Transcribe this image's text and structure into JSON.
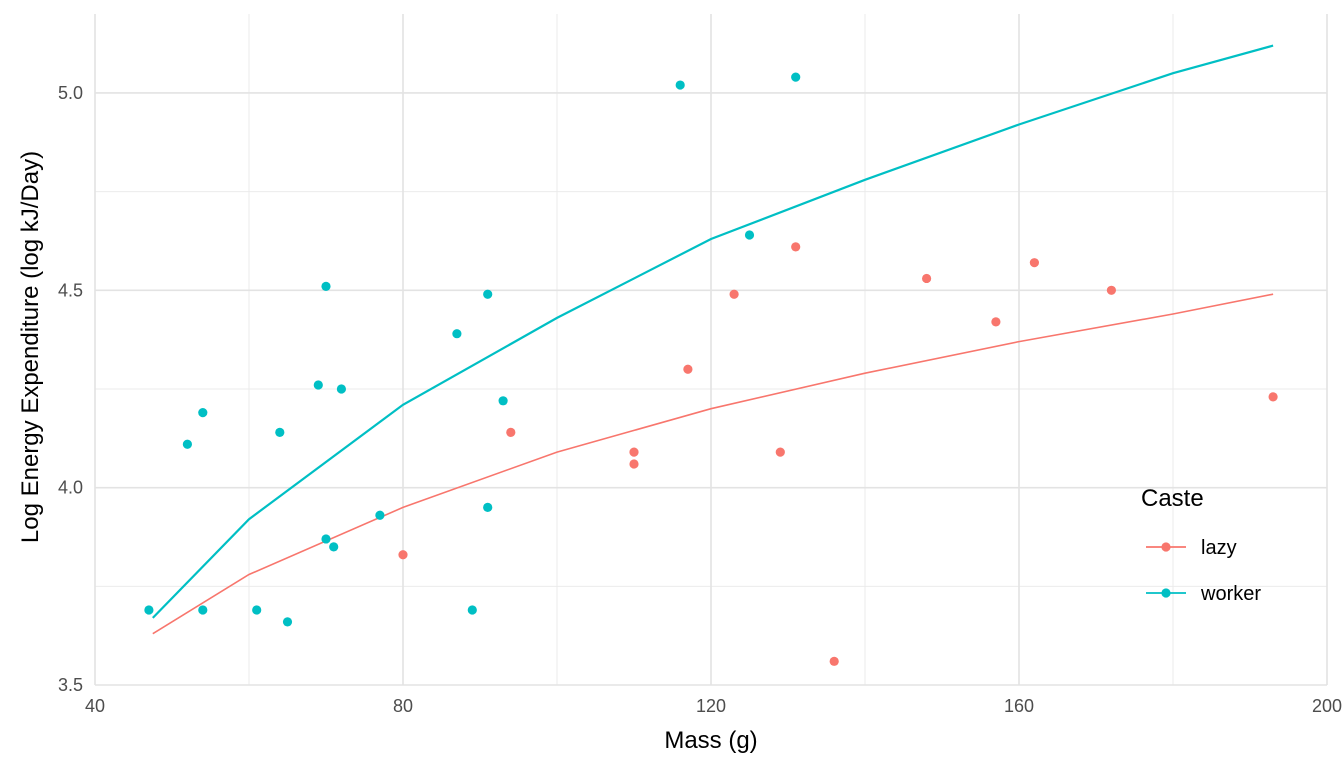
{
  "chart_data": {
    "type": "scatter",
    "title": "",
    "xlabel": "Mass (g)",
    "ylabel": "Log Energy Expenditure (log kJ/Day)",
    "xlim": [
      40,
      200
    ],
    "ylim": [
      3.5,
      5.2
    ],
    "x_ticks": [
      40,
      80,
      120,
      160,
      200
    ],
    "y_ticks": [
      3.5,
      4.0,
      4.5,
      5.0
    ],
    "x_tick_labels": [
      "40",
      "80",
      "120",
      "160",
      "200"
    ],
    "y_tick_labels": [
      "3.5",
      "4.0",
      "4.5",
      "5.0"
    ],
    "grid": true,
    "legend": {
      "title": "Caste",
      "placement": "bottom-right"
    },
    "series": [
      {
        "name": "lazy",
        "color": "#F8766D",
        "points": [
          {
            "x": 80,
            "y": 3.83
          },
          {
            "x": 94,
            "y": 4.14
          },
          {
            "x": 110,
            "y": 4.09
          },
          {
            "x": 110,
            "y": 4.06
          },
          {
            "x": 117,
            "y": 4.3
          },
          {
            "x": 123,
            "y": 4.49
          },
          {
            "x": 129,
            "y": 4.09
          },
          {
            "x": 131,
            "y": 4.61
          },
          {
            "x": 136,
            "y": 3.56
          },
          {
            "x": 148,
            "y": 4.53
          },
          {
            "x": 157,
            "y": 4.42
          },
          {
            "x": 162,
            "y": 4.57
          },
          {
            "x": 172,
            "y": 4.5
          },
          {
            "x": 193,
            "y": 4.23
          }
        ],
        "fit": [
          {
            "x": 47.5,
            "y": 3.63
          },
          {
            "x": 60,
            "y": 3.78
          },
          {
            "x": 80,
            "y": 3.95
          },
          {
            "x": 100,
            "y": 4.09
          },
          {
            "x": 120,
            "y": 4.2
          },
          {
            "x": 140,
            "y": 4.29
          },
          {
            "x": 160,
            "y": 4.37
          },
          {
            "x": 180,
            "y": 4.44
          },
          {
            "x": 193,
            "y": 4.49
          }
        ]
      },
      {
        "name": "worker",
        "color": "#00BFC4",
        "points": [
          {
            "x": 47,
            "y": 3.69
          },
          {
            "x": 52,
            "y": 4.11
          },
          {
            "x": 54,
            "y": 4.19
          },
          {
            "x": 54,
            "y": 3.69
          },
          {
            "x": 61,
            "y": 3.69
          },
          {
            "x": 64,
            "y": 4.14
          },
          {
            "x": 65,
            "y": 3.66
          },
          {
            "x": 69,
            "y": 4.26
          },
          {
            "x": 70,
            "y": 4.51
          },
          {
            "x": 70,
            "y": 3.87
          },
          {
            "x": 71,
            "y": 3.85
          },
          {
            "x": 72,
            "y": 4.25
          },
          {
            "x": 77,
            "y": 3.93
          },
          {
            "x": 87,
            "y": 4.39
          },
          {
            "x": 89,
            "y": 3.69
          },
          {
            "x": 91,
            "y": 4.49
          },
          {
            "x": 91,
            "y": 3.95
          },
          {
            "x": 93,
            "y": 4.22
          },
          {
            "x": 116,
            "y": 5.02
          },
          {
            "x": 125,
            "y": 4.64
          },
          {
            "x": 131,
            "y": 5.04
          }
        ],
        "fit": [
          {
            "x": 47.5,
            "y": 3.67
          },
          {
            "x": 60,
            "y": 3.92
          },
          {
            "x": 80,
            "y": 4.21
          },
          {
            "x": 100,
            "y": 4.43
          },
          {
            "x": 120,
            "y": 4.63
          },
          {
            "x": 140,
            "y": 4.78
          },
          {
            "x": 160,
            "y": 4.92
          },
          {
            "x": 180,
            "y": 5.05
          },
          {
            "x": 193,
            "y": 5.12
          }
        ]
      }
    ]
  }
}
